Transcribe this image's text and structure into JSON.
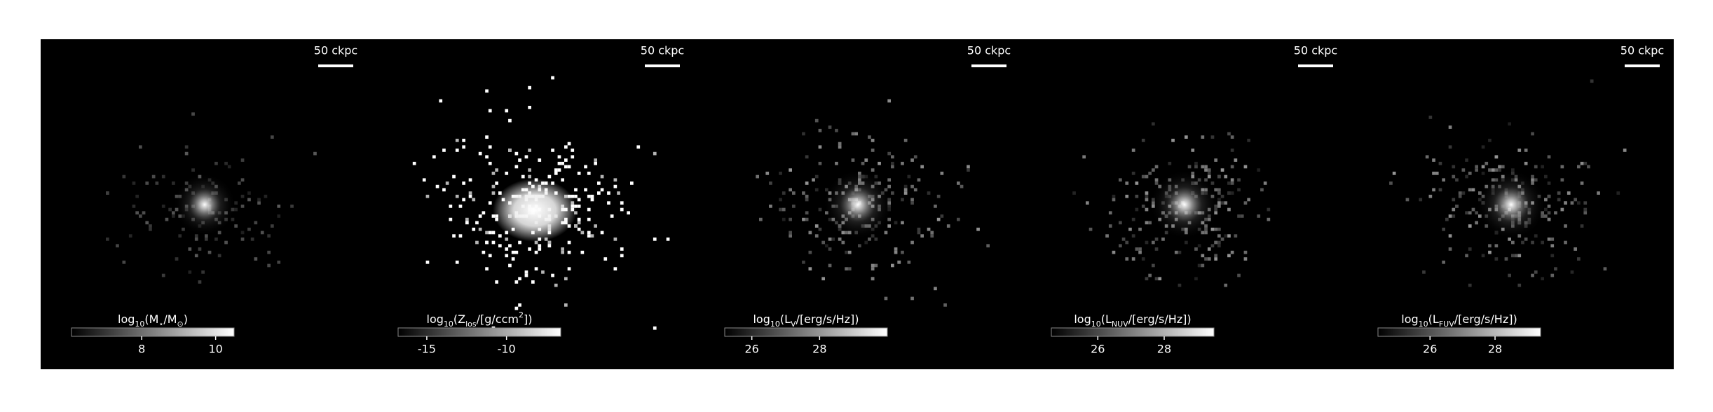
{
  "chart_data": [
    {
      "type": "image",
      "scalebar_label": "50 ckpc",
      "colorbar": {
        "label": [
          {
            "text": "log"
          },
          {
            "text": "10",
            "sub": true
          },
          {
            "text": "(M"
          },
          {
            "text": "⋆",
            "sub": true
          },
          {
            "text": "/M"
          },
          {
            "text": "⊙",
            "sub": true
          },
          {
            "text": ")"
          }
        ],
        "clim": [
          6.1,
          10.5
        ],
        "ticks": [
          8,
          10
        ]
      }
    },
    {
      "type": "image",
      "scalebar_label": "50 ckpc",
      "colorbar": {
        "label": [
          {
            "text": "log"
          },
          {
            "text": "10",
            "sub": true
          },
          {
            "text": "(Z"
          },
          {
            "text": "los",
            "sub": true
          },
          {
            "text": "/[g/ccm"
          },
          {
            "text": "2",
            "sup": true
          },
          {
            "text": "])"
          }
        ],
        "clim": [
          -16.8,
          -6.6
        ],
        "ticks": [
          -15,
          -10
        ]
      }
    },
    {
      "type": "image",
      "scalebar_label": "50 ckpc",
      "colorbar": {
        "label": [
          {
            "text": "log"
          },
          {
            "text": "10",
            "sub": true
          },
          {
            "text": "(L"
          },
          {
            "text": "V",
            "sub": true
          },
          {
            "text": "/[erg/s/Hz])"
          }
        ],
        "clim": [
          25.2,
          30.0
        ],
        "ticks": [
          26,
          28
        ]
      }
    },
    {
      "type": "image",
      "scalebar_label": "50 ckpc",
      "colorbar": {
        "label": [
          {
            "text": "log"
          },
          {
            "text": "10",
            "sub": true
          },
          {
            "text": "(L"
          },
          {
            "text": "NUV",
            "sub": true
          },
          {
            "text": "/[erg/s/Hz])"
          }
        ],
        "clim": [
          24.6,
          29.5
        ],
        "ticks": [
          26,
          28
        ]
      }
    },
    {
      "type": "image",
      "scalebar_label": "50 ckpc",
      "colorbar": {
        "label": [
          {
            "text": "log"
          },
          {
            "text": "10",
            "sub": true
          },
          {
            "text": "(L"
          },
          {
            "text": "FUV",
            "sub": true
          },
          {
            "text": "/[erg/s/Hz])"
          }
        ],
        "clim": [
          24.4,
          29.4
        ],
        "ticks": [
          26,
          28
        ]
      }
    }
  ]
}
